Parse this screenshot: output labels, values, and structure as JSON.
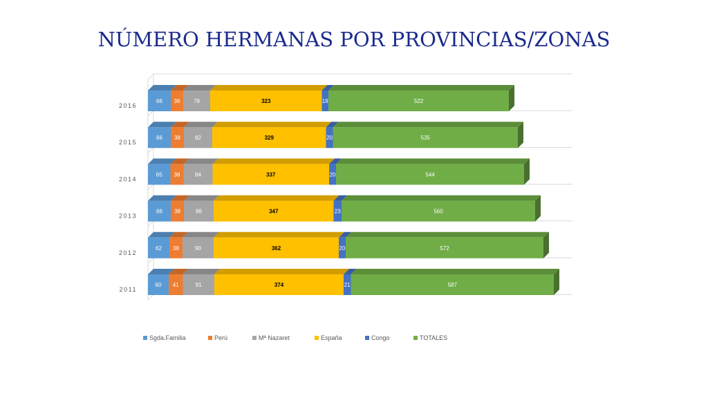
{
  "chart_data": {
    "type": "bar",
    "orientation": "horizontal",
    "stacked": true,
    "style": "3d",
    "title": "NÚMERO HERMANAS POR PROVINCIAS/ZONAS",
    "categories": [
      "2016",
      "2015",
      "2014",
      "2013",
      "2012",
      "2011"
    ],
    "series": [
      {
        "name": "Sgda.Familia",
        "color": "#5b9bd5",
        "values": [
          66,
          66,
          65,
          66,
          62,
          60
        ]
      },
      {
        "name": "Perú",
        "color": "#ed7d31",
        "values": [
          36,
          38,
          38,
          38,
          38,
          41
        ]
      },
      {
        "name": "Mª Nazaret",
        "color": "#a5a5a5",
        "values": [
          78,
          82,
          84,
          86,
          90,
          91
        ]
      },
      {
        "name": "España",
        "color": "#ffc000",
        "values": [
          323,
          329,
          337,
          347,
          362,
          374
        ]
      },
      {
        "name": "Congo",
        "color": "#4472c4",
        "values": [
          19,
          20,
          20,
          23,
          20,
          21
        ]
      },
      {
        "name": "TOTALES",
        "color": "#70ad47",
        "values": [
          522,
          535,
          544,
          560,
          572,
          587
        ]
      }
    ],
    "legend_position": "bottom",
    "grid": true
  }
}
